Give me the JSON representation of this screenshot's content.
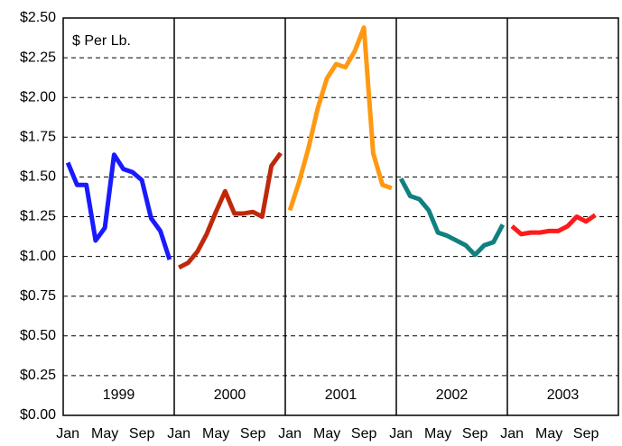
{
  "chart_data": {
    "type": "line",
    "y_label": "$ Per Lb.",
    "categories": [
      "Jan",
      null,
      null,
      null,
      "May",
      null,
      null,
      null,
      "Sep",
      null,
      null,
      null,
      "Jan",
      null,
      null,
      null,
      "May",
      null,
      null,
      null,
      "Sep",
      null,
      null,
      null,
      "Jan",
      null,
      null,
      null,
      "May",
      null,
      null,
      null,
      "Sep",
      null,
      null,
      null,
      "Jan",
      null,
      null,
      null,
      "May",
      null,
      null,
      null,
      "Sep",
      null,
      null,
      null,
      "Jan",
      null,
      null,
      null,
      "May",
      null,
      null,
      null,
      "Sep",
      null,
      null,
      null
    ],
    "series": [
      {
        "name": "1999",
        "color": "#1a1aff",
        "values": [
          1.59,
          1.45,
          1.45,
          1.1,
          1.18,
          1.64,
          1.55,
          1.53,
          1.48,
          1.24,
          1.16,
          0.98,
          null,
          null,
          null,
          null,
          null,
          null,
          null,
          null,
          null,
          null,
          null,
          null,
          null,
          null,
          null,
          null,
          null,
          null,
          null,
          null,
          null,
          null,
          null,
          null,
          null,
          null,
          null,
          null,
          null,
          null,
          null,
          null,
          null,
          null,
          null,
          null,
          null,
          null,
          null,
          null,
          null,
          null,
          null,
          null,
          null,
          null,
          null,
          null
        ]
      },
      {
        "name": "2000",
        "color": "#c0280a",
        "values": [
          null,
          null,
          null,
          null,
          null,
          null,
          null,
          null,
          null,
          null,
          null,
          null,
          0.93,
          0.96,
          1.03,
          1.14,
          1.28,
          1.41,
          1.27,
          1.27,
          1.28,
          1.25,
          1.57,
          1.65,
          null,
          null,
          null,
          null,
          null,
          null,
          null,
          null,
          null,
          null,
          null,
          null,
          null,
          null,
          null,
          null,
          null,
          null,
          null,
          null,
          null,
          null,
          null,
          null,
          null,
          null,
          null,
          null,
          null,
          null,
          null,
          null,
          null,
          null,
          null,
          null
        ]
      },
      {
        "name": "2001",
        "color": "#ff9912",
        "values": [
          null,
          null,
          null,
          null,
          null,
          null,
          null,
          null,
          null,
          null,
          null,
          null,
          null,
          null,
          null,
          null,
          null,
          null,
          null,
          null,
          null,
          null,
          null,
          null,
          1.29,
          1.47,
          1.68,
          1.93,
          2.12,
          2.21,
          2.19,
          2.29,
          2.44,
          1.65,
          1.45,
          1.43,
          null,
          null,
          null,
          null,
          null,
          null,
          null,
          null,
          null,
          null,
          null,
          null,
          null,
          null,
          null,
          null,
          null,
          null,
          null,
          null,
          null,
          null,
          null,
          null
        ]
      },
      {
        "name": "2002",
        "color": "#108080",
        "values": [
          null,
          null,
          null,
          null,
          null,
          null,
          null,
          null,
          null,
          null,
          null,
          null,
          null,
          null,
          null,
          null,
          null,
          null,
          null,
          null,
          null,
          null,
          null,
          null,
          null,
          null,
          null,
          null,
          null,
          null,
          null,
          null,
          null,
          null,
          null,
          null,
          1.49,
          1.38,
          1.36,
          1.29,
          1.15,
          1.13,
          1.1,
          1.07,
          1.01,
          1.07,
          1.09,
          1.2,
          null,
          null,
          null,
          null,
          null,
          null,
          null,
          null,
          null,
          null,
          null,
          null
        ]
      },
      {
        "name": "2003",
        "color": "#ff1a1a",
        "values": [
          null,
          null,
          null,
          null,
          null,
          null,
          null,
          null,
          null,
          null,
          null,
          null,
          null,
          null,
          null,
          null,
          null,
          null,
          null,
          null,
          null,
          null,
          null,
          null,
          null,
          null,
          null,
          null,
          null,
          null,
          null,
          null,
          null,
          null,
          null,
          null,
          null,
          null,
          null,
          null,
          null,
          null,
          null,
          null,
          null,
          null,
          null,
          null,
          1.19,
          1.14,
          1.15,
          1.15,
          1.16,
          1.16,
          1.19,
          1.25,
          1.22,
          1.26,
          null,
          null
        ]
      }
    ],
    "ylim": [
      0,
      2.5
    ],
    "yticks": [
      {
        "value": 0,
        "label": "$0.00"
      },
      {
        "value": 0.25,
        "label": "$0.25"
      },
      {
        "value": 0.5,
        "label": "$0.50"
      },
      {
        "value": 0.75,
        "label": "$0.75"
      },
      {
        "value": 1,
        "label": "$1.00"
      },
      {
        "value": 1.25,
        "label": "$1.25"
      },
      {
        "value": 1.5,
        "label": "$1.50"
      },
      {
        "value": 1.75,
        "label": "$1.75"
      },
      {
        "value": 2,
        "label": "$2.00"
      },
      {
        "value": 2.25,
        "label": "$2.25"
      },
      {
        "value": 2.5,
        "label": "$2.50"
      }
    ],
    "grid": true
  }
}
